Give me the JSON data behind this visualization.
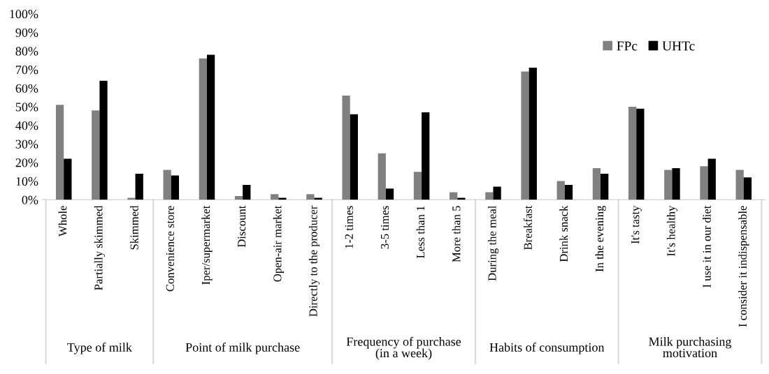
{
  "chart_data": {
    "type": "bar",
    "categories": [
      "Whole",
      "Partially skimmed",
      "Skimmed",
      "Convenience store",
      "Iper/supermarket",
      "Discount",
      "Open-air market",
      "Directly to the producer",
      "1-2 times",
      "3-5 times",
      "Less than 1",
      "More than 5",
      "During the meal",
      "Breakfast",
      "Drink snack",
      "In the evening",
      "It's tasty",
      "It's healthy",
      "I use it in our diet",
      "I consider it indispensable"
    ],
    "series": [
      {
        "name": "FPc",
        "color": "#808080",
        "values": [
          51,
          48,
          1,
          16,
          76,
          2,
          3,
          3,
          56,
          25,
          15,
          4,
          4,
          69,
          10,
          17,
          50,
          16,
          18,
          16
        ]
      },
      {
        "name": "UHTc",
        "color": "#000000",
        "values": [
          22,
          64,
          14,
          13,
          78,
          8,
          1,
          1,
          46,
          6,
          47,
          1,
          7,
          71,
          8,
          14,
          49,
          17,
          22,
          12
        ]
      }
    ],
    "ylim": [
      0,
      100
    ],
    "yticks": [
      {
        "value": 0,
        "label": "0%"
      },
      {
        "value": 10,
        "label": "10%"
      },
      {
        "value": 20,
        "label": "20%"
      },
      {
        "value": 30,
        "label": "30%"
      },
      {
        "value": 40,
        "label": "40%"
      },
      {
        "value": 50,
        "label": "50%"
      },
      {
        "value": 60,
        "label": "60%"
      },
      {
        "value": 70,
        "label": "70%"
      },
      {
        "value": 80,
        "label": "80%"
      },
      {
        "value": 90,
        "label": "90%"
      },
      {
        "value": 100,
        "label": "100%"
      }
    ],
    "annotations": [
      "Type of milk",
      "Point of milk purchase",
      "Frequency of purchase (in a week)",
      "Habits of consumption",
      "Milk purchasing motivation"
    ],
    "grid": false,
    "legend": "top right"
  }
}
